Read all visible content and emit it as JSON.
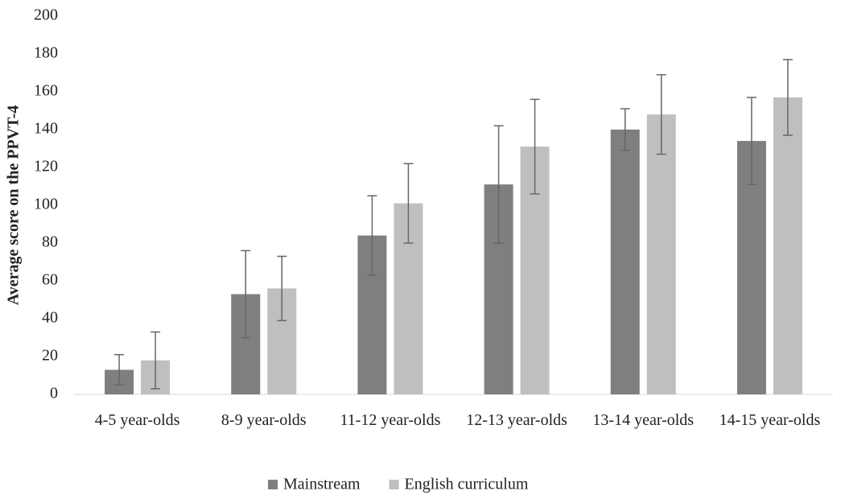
{
  "chart_data": {
    "type": "bar",
    "y_label": "Average score on the PPVT-4",
    "categories": [
      "4-5 year-olds",
      "8-9 year-olds",
      "11-12 year-olds",
      "12-13 year-olds",
      "13-14 year-olds",
      "14-15 year-olds"
    ],
    "series": [
      {
        "name": "Mainstream",
        "color": "#7f7f7f",
        "values": [
          13,
          53,
          84,
          111,
          140,
          134
        ],
        "errors": [
          8,
          23,
          21,
          31,
          11,
          23
        ]
      },
      {
        "name": "English curriculum",
        "color": "#bfbfbf",
        "values": [
          18,
          56,
          101,
          131,
          148,
          157
        ],
        "errors": [
          15,
          17,
          21,
          25,
          21,
          20
        ]
      }
    ],
    "error_color": "#666666",
    "ylim": [
      0,
      200
    ],
    "yticks": [
      0,
      20,
      40,
      60,
      80,
      100,
      120,
      140,
      160,
      180,
      200
    ],
    "grid": false,
    "legend": "bottom"
  }
}
